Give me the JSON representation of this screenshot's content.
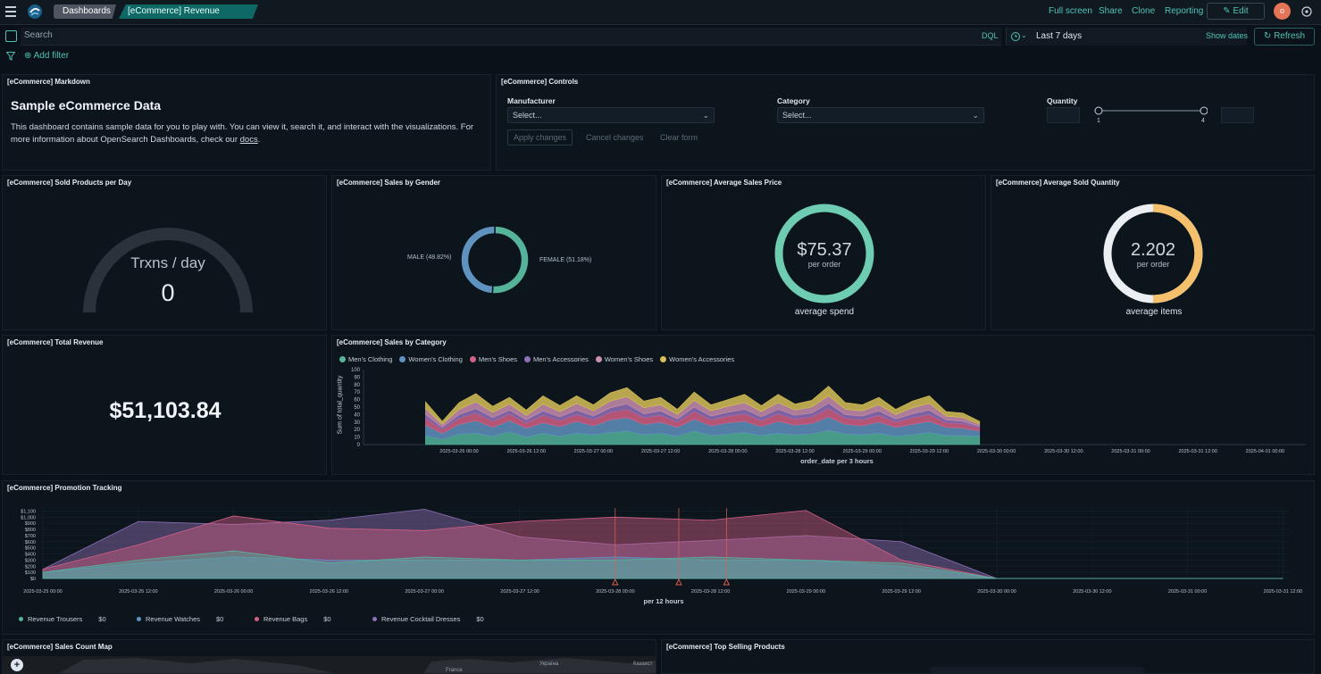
{
  "topbar": {
    "breadcrumbs": [
      "Dashboards",
      "[eCommerce] Revenue Dashboard"
    ],
    "links": [
      "Full screen",
      "Share",
      "Clone",
      "Reporting"
    ],
    "edit_label": "Edit",
    "avatar_initial": "o"
  },
  "search": {
    "placeholder": "Search",
    "dql_label": "DQL",
    "time_range": "Last 7 days",
    "show_dates_label": "Show dates",
    "refresh_label": "Refresh"
  },
  "filters": {
    "add_filter_label": "Add filter"
  },
  "markdown_panel": {
    "title": "[eCommerce] Markdown",
    "heading": "Sample eCommerce Data",
    "body": "This dashboard contains sample data for you to play with. You can view it, search it, and interact with the visualizations. For more information about OpenSearch Dashboards, check our ",
    "link_text": "docs",
    "body_end": "."
  },
  "controls_panel": {
    "title": "[eCommerce] Controls",
    "manufacturer_label": "Manufacturer",
    "manufacturer_value": "Select...",
    "category_label": "Category",
    "category_value": "Select...",
    "quantity_label": "Quantity",
    "quantity_min": "1",
    "quantity_max": "4",
    "apply_label": "Apply changes",
    "cancel_label": "Cancel changes",
    "clear_label": "Clear form"
  },
  "sold_per_day": {
    "title": "[eCommerce] Sold Products per Day",
    "label": "Trxns / day",
    "value": "0"
  },
  "sales_by_gender": {
    "title": "[eCommerce] Sales by Gender",
    "male_label": "MALE (48.82%)",
    "female_label": "FEMALE (51.18%)",
    "male_pct": 48.82,
    "female_pct": 51.18,
    "male_color": "#6092c0",
    "female_color": "#54b399"
  },
  "avg_sales_price": {
    "title": "[eCommerce] Average Sales Price",
    "value": "$75.37",
    "unit": "per order",
    "caption": "average spend",
    "color": "#6dccb1"
  },
  "avg_sold_quantity": {
    "title": "[eCommerce] Average Sold Quantity",
    "value": "2.202",
    "unit": "per order",
    "caption": "average items",
    "color": "#f5c06b"
  },
  "total_revenue": {
    "title": "[eCommerce] Total Revenue",
    "value": "$51,103.84"
  },
  "sales_by_category": {
    "title": "[eCommerce] Sales by Category",
    "legend": [
      {
        "name": "Men's Clothing",
        "color": "#54b399"
      },
      {
        "name": "Women's Clothing",
        "color": "#6092c0"
      },
      {
        "name": "Men's Shoes",
        "color": "#d36086"
      },
      {
        "name": "Men's Accessories",
        "color": "#9170b8"
      },
      {
        "name": "Women's Shoes",
        "color": "#ca8eae"
      },
      {
        "name": "Women's Accessories",
        "color": "#d6bf57"
      }
    ],
    "ylabel": "Sum of total_quantity",
    "xlabel": "order_date per 3 hours",
    "yticks": [
      "0",
      "10",
      "20",
      "30",
      "40",
      "50",
      "60",
      "70",
      "80",
      "90",
      "100"
    ],
    "xticks": [
      "2025-03-26 00:00",
      "2025-03-26 12:00",
      "2025-03-27 00:00",
      "2025-03-27 12:00",
      "2025-03-28 00:00",
      "2025-03-28 12:00",
      "2025-03-29 00:00",
      "2025-03-29 12:00",
      "2025-03-30 00:00",
      "2025-03-30 12:00",
      "2025-03-31 00:00",
      "2025-03-31 12:00",
      "2025-04-01 00:00"
    ]
  },
  "promotion_tracking": {
    "title": "[eCommerce] Promotion Tracking",
    "yticks": [
      "$0",
      "$100",
      "$200",
      "$300",
      "$400",
      "$500",
      "$600",
      "$700",
      "$800",
      "$900",
      "$1,000",
      "$1,100"
    ],
    "xticks": [
      "2025-03-25 00:00",
      "2025-03-25 12:00",
      "2025-03-26 00:00",
      "2025-03-26 12:00",
      "2025-03-27 00:00",
      "2025-03-27 12:00",
      "2025-03-28 00:00",
      "2025-03-28 12:00",
      "2025-03-29 00:00",
      "2025-03-29 12:00",
      "2025-03-30 00:00",
      "2025-03-30 12:00",
      "2025-03-31 00:00",
      "2025-03-31 12:00"
    ],
    "xlabel": "per 12 hours",
    "legend": [
      {
        "name": "Revenue Trousers",
        "value": "$0",
        "color": "#54b399"
      },
      {
        "name": "Revenue Watches",
        "value": "$0",
        "color": "#6092c0"
      },
      {
        "name": "Revenue Bags",
        "value": "$0",
        "color": "#d36086"
      },
      {
        "name": "Revenue Cocktail Dresses",
        "value": "$0",
        "color": "#9170b8"
      }
    ]
  },
  "sales_count_map": {
    "title": "[eCommerce] Sales Count Map",
    "labels": [
      "France",
      "Україна",
      "Казахст"
    ]
  },
  "top_selling": {
    "title": "[eCommerce] Top Selling Products"
  },
  "chart_data": [
    {
      "type": "area",
      "title": "[eCommerce] Sales by Category",
      "xlabel": "order_date per 3 hours",
      "ylabel": "Sum of total_quantity",
      "ylim": [
        0,
        100
      ],
      "x": [
        "2025-03-25 18:00",
        "2025-03-25 21:00",
        "2025-03-26 00:00",
        "2025-03-26 03:00",
        "2025-03-26 06:00",
        "2025-03-26 09:00",
        "2025-03-26 12:00",
        "2025-03-26 15:00",
        "2025-03-26 18:00",
        "2025-03-26 21:00",
        "2025-03-27 00:00",
        "2025-03-27 03:00",
        "2025-03-27 06:00",
        "2025-03-27 09:00",
        "2025-03-27 12:00",
        "2025-03-27 15:00",
        "2025-03-27 18:00",
        "2025-03-27 21:00",
        "2025-03-28 00:00",
        "2025-03-28 03:00",
        "2025-03-28 06:00",
        "2025-03-28 09:00",
        "2025-03-28 12:00",
        "2025-03-28 15:00",
        "2025-03-28 18:00",
        "2025-03-28 21:00",
        "2025-03-29 00:00",
        "2025-03-29 03:00",
        "2025-03-29 06:00",
        "2025-03-29 09:00",
        "2025-03-29 12:00",
        "2025-03-29 15:00",
        "2025-03-29 18:00",
        "2025-03-29 21:00"
      ],
      "series": [
        {
          "name": "Men's Clothing",
          "values": [
            12,
            7,
            14,
            15,
            11,
            17,
            10,
            15,
            11,
            15,
            13,
            16,
            18,
            13,
            15,
            11,
            18,
            12,
            14,
            16,
            12,
            15,
            13,
            14,
            19,
            14,
            13,
            15,
            11,
            13,
            16,
            12,
            12,
            11
          ]
        },
        {
          "name": "Women's Clothing",
          "values": [
            14,
            8,
            13,
            17,
            12,
            15,
            12,
            14,
            13,
            16,
            12,
            17,
            18,
            14,
            15,
            12,
            16,
            13,
            15,
            15,
            12,
            16,
            13,
            14,
            18,
            13,
            12,
            15,
            12,
            14,
            15,
            11,
            10,
            7
          ]
        },
        {
          "name": "Men's Shoes",
          "values": [
            9,
            5,
            8,
            10,
            8,
            9,
            7,
            10,
            8,
            9,
            8,
            10,
            11,
            9,
            9,
            7,
            10,
            8,
            9,
            10,
            8,
            10,
            8,
            9,
            11,
            8,
            8,
            9,
            7,
            9,
            9,
            6,
            6,
            4
          ]
        },
        {
          "name": "Men's Accessories",
          "values": [
            5,
            3,
            5,
            6,
            5,
            5,
            4,
            6,
            5,
            6,
            5,
            6,
            7,
            5,
            6,
            4,
            6,
            5,
            5,
            6,
            5,
            6,
            5,
            5,
            7,
            5,
            5,
            6,
            4,
            5,
            6,
            4,
            3,
            2
          ]
        },
        {
          "name": "Women's Shoes",
          "values": [
            8,
            4,
            7,
            9,
            7,
            8,
            6,
            9,
            7,
            9,
            7,
            9,
            10,
            8,
            8,
            6,
            9,
            7,
            8,
            9,
            7,
            9,
            7,
            8,
            10,
            7,
            7,
            8,
            6,
            8,
            9,
            5,
            5,
            3
          ]
        },
        {
          "name": "Women's Accessories",
          "values": [
            9,
            4,
            9,
            11,
            8,
            9,
            7,
            11,
            8,
            10,
            8,
            11,
            12,
            9,
            10,
            7,
            11,
            8,
            9,
            11,
            8,
            11,
            8,
            9,
            13,
            9,
            8,
            10,
            7,
            9,
            10,
            6,
            6,
            4
          ]
        }
      ]
    },
    {
      "type": "area",
      "title": "[eCommerce] Promotion Tracking",
      "xlabel": "per 12 hours",
      "ylim": [
        0,
        1200
      ],
      "x": [
        "2025-03-25 00:00",
        "2025-03-25 12:00",
        "2025-03-26 00:00",
        "2025-03-26 12:00",
        "2025-03-27 00:00",
        "2025-03-27 12:00",
        "2025-03-28 00:00",
        "2025-03-28 12:00",
        "2025-03-29 00:00",
        "2025-03-29 12:00",
        "2025-03-30 00:00",
        "2025-03-30 12:00",
        "2025-03-31 00:00",
        "2025-03-31 12:00"
      ],
      "series": [
        {
          "name": "Revenue Trousers",
          "values": [
            100,
            300,
            450,
            250,
            350,
            300,
            300,
            350,
            300,
            250,
            0,
            0,
            0,
            0
          ]
        },
        {
          "name": "Revenue Watches",
          "values": [
            100,
            250,
            350,
            300,
            300,
            300,
            350,
            300,
            300,
            200,
            0,
            0,
            0,
            0
          ]
        },
        {
          "name": "Revenue Bags",
          "values": [
            150,
            550,
            1020,
            820,
            780,
            930,
            1000,
            950,
            1110,
            300,
            0,
            0,
            0,
            0
          ]
        },
        {
          "name": "Revenue Cocktail Dresses",
          "values": [
            150,
            930,
            880,
            950,
            1130,
            680,
            550,
            620,
            700,
            600,
            0,
            0,
            0,
            0
          ]
        }
      ],
      "annotations_x": [
        "2025-03-28 00:00",
        "2025-03-28 08:00",
        "2025-03-28 14:00"
      ]
    }
  ]
}
